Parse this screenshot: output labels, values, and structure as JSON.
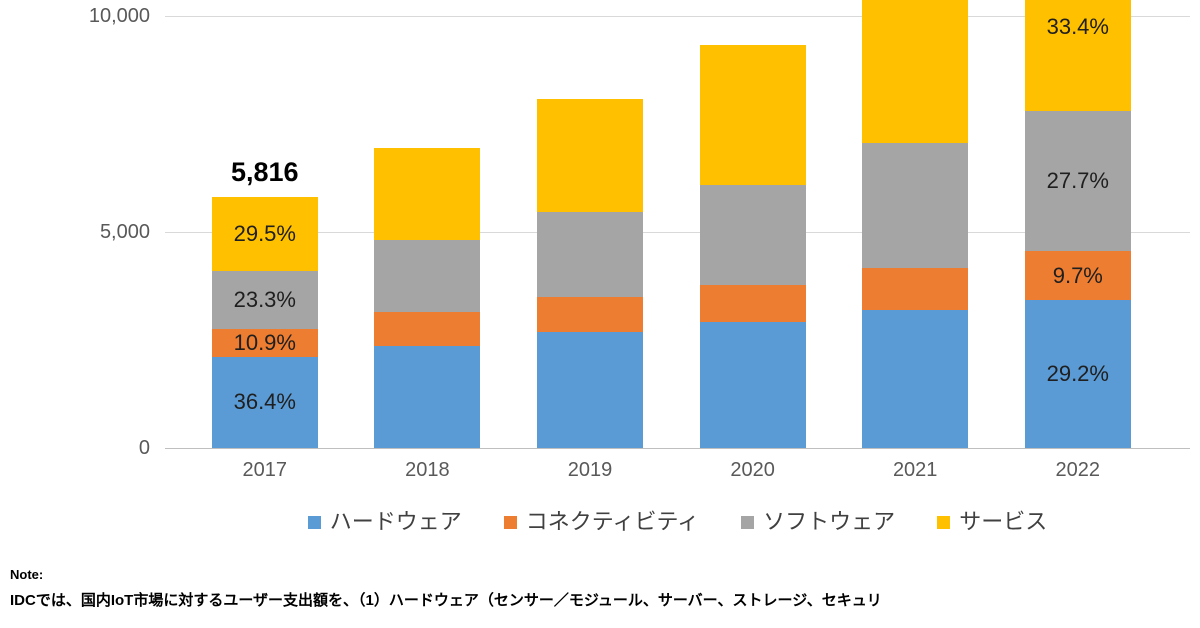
{
  "colors": {
    "hardware": "#5B9BD5",
    "connectivity": "#ED7D31",
    "software": "#A5A5A5",
    "service": "#FFC000",
    "gridline": "#D9D9D9",
    "axis_line": "#BFBFBF",
    "axis_text": "#595959",
    "label_text": "#1F1F1F"
  },
  "chart_data": {
    "type": "bar",
    "stacked": true,
    "grid": true,
    "legend_position": "bottom",
    "categories": [
      "2017",
      "2018",
      "2019",
      "2020",
      "2021",
      "2022"
    ],
    "series": [
      {
        "key": "hardware",
        "name": "ハードウェア",
        "color": "#5B9BD5",
        "values": [
          2117,
          2361,
          2685,
          2917,
          3194,
          3416
        ],
        "labels": [
          "36.4%",
          null,
          null,
          null,
          null,
          "29.2%"
        ]
      },
      {
        "key": "connectivity",
        "name": "コネクティビティ",
        "color": "#ED7D31",
        "values": [
          634,
          787,
          810,
          856,
          972,
          1135
        ],
        "labels": [
          "10.9%",
          null,
          null,
          null,
          null,
          "9.7%"
        ]
      },
      {
        "key": "software",
        "name": "ソフトウェア",
        "color": "#A5A5A5",
        "values": [
          1355,
          1667,
          1968,
          2315,
          2894,
          3241
        ],
        "labels": [
          "23.3%",
          null,
          null,
          null,
          null,
          "27.7%"
        ]
      },
      {
        "key": "service",
        "name": "サービス",
        "color": "#FFC000",
        "values": [
          1710,
          2130,
          2616,
          3241,
          3440,
          3908
        ],
        "labels": [
          "29.5%",
          null,
          null,
          null,
          null,
          "33.4%"
        ]
      }
    ],
    "totals": [
      5816,
      6945,
      8079,
      9329,
      10500,
      11700
    ],
    "total_labels": [
      "5,816",
      null,
      null,
      null,
      null,
      null
    ],
    "y_ticks": [
      "0",
      "5,000",
      "10,000"
    ],
    "y_tick_values": [
      0,
      5000,
      10000
    ],
    "ylim_visible": [
      0,
      10370
    ]
  },
  "note": {
    "title": "Note:",
    "body": "IDCでは、国内IoT市場に対するユーザー支出額を、（1）ハードウェア（センサー／モジュール、サーバー、ストレージ、セキュリ"
  }
}
